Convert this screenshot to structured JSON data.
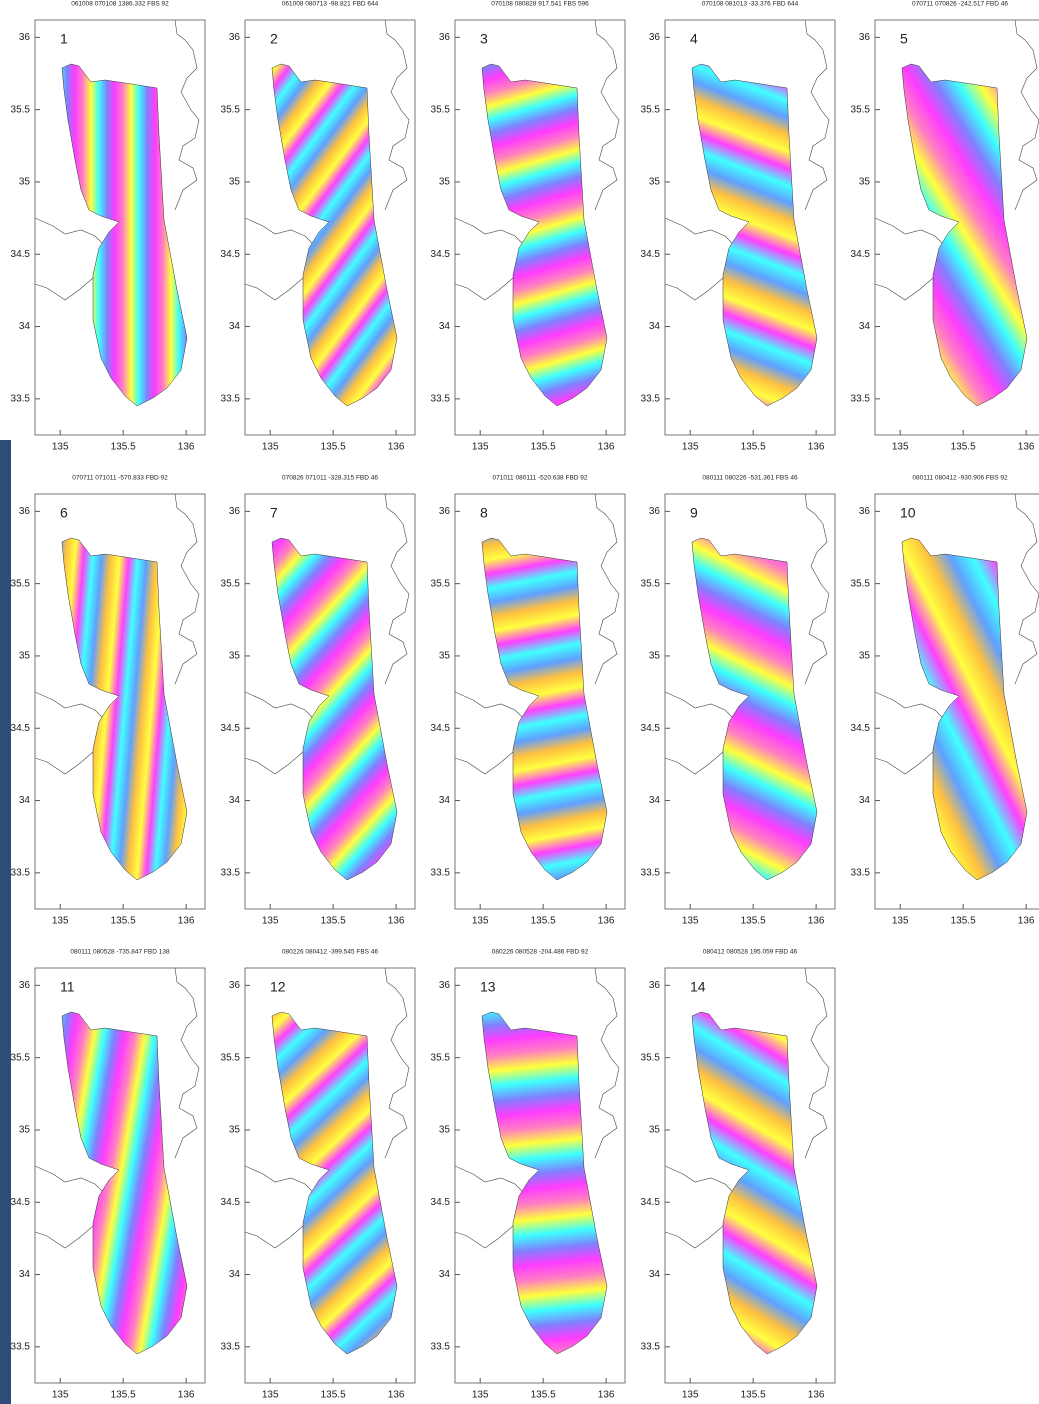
{
  "chart_data": [
    {
      "type": "map",
      "title": "061008 070108 1386.332 FBS 92",
      "annotation": "1",
      "xlim": [
        134.8,
        136.15
      ],
      "ylim": [
        33.25,
        36.12
      ],
      "xticks": [
        135,
        135.5,
        136
      ],
      "yticks": [
        33.5,
        34,
        34.5,
        35,
        35.5,
        36
      ]
    },
    {
      "type": "map",
      "title": "061008 080713 -98.821 FBD 644",
      "annotation": "2",
      "xlim": [
        134.8,
        136.15
      ],
      "ylim": [
        33.25,
        36.12
      ],
      "xticks": [
        135,
        135.5,
        136
      ],
      "yticks": [
        33.5,
        34,
        34.5,
        35,
        35.5,
        36
      ]
    },
    {
      "type": "map",
      "title": "070108 080828 917.541 FBS 596",
      "annotation": "3",
      "xlim": [
        134.8,
        136.15
      ],
      "ylim": [
        33.25,
        36.12
      ],
      "xticks": [
        135,
        135.5,
        136
      ],
      "yticks": [
        33.5,
        34,
        34.5,
        35,
        35.5,
        36
      ]
    },
    {
      "type": "map",
      "title": "070108 081013 -33.376 FBD 644",
      "annotation": "4",
      "xlim": [
        134.8,
        136.15
      ],
      "ylim": [
        33.25,
        36.12
      ],
      "xticks": [
        135,
        135.5,
        136
      ],
      "yticks": [
        33.5,
        34,
        34.5,
        35,
        35.5,
        36
      ]
    },
    {
      "type": "map",
      "title": "070711 070826 -242.517 FBD 46",
      "annotation": "5",
      "xlim": [
        134.8,
        136.15
      ],
      "ylim": [
        33.25,
        36.12
      ],
      "xticks": [
        135,
        135.5,
        136
      ],
      "yticks": [
        33.5,
        34,
        34.5,
        35,
        35.5,
        36
      ]
    },
    {
      "type": "map",
      "title": "070711 071011 -570.833 FBD 92",
      "annotation": "6",
      "xlim": [
        134.8,
        136.15
      ],
      "ylim": [
        33.25,
        36.12
      ],
      "xticks": [
        135,
        135.5,
        136
      ],
      "yticks": [
        33.5,
        34,
        34.5,
        35,
        35.5,
        36
      ]
    },
    {
      "type": "map",
      "title": "070826 071011 -328.315 FBD 46",
      "annotation": "7",
      "xlim": [
        134.8,
        136.15
      ],
      "ylim": [
        33.25,
        36.12
      ],
      "xticks": [
        135,
        135.5,
        136
      ],
      "yticks": [
        33.5,
        34,
        34.5,
        35,
        35.5,
        36
      ]
    },
    {
      "type": "map",
      "title": "071011 080111 -520.638 FBD 92",
      "annotation": "8",
      "xlim": [
        134.8,
        136.15
      ],
      "ylim": [
        33.25,
        36.12
      ],
      "xticks": [
        135,
        135.5,
        136
      ],
      "yticks": [
        33.5,
        34,
        34.5,
        35,
        35.5,
        36
      ]
    },
    {
      "type": "map",
      "title": "080111 080226 -531.361 FBS 46",
      "annotation": "9",
      "xlim": [
        134.8,
        136.15
      ],
      "ylim": [
        33.25,
        36.12
      ],
      "xticks": [
        135,
        135.5,
        136
      ],
      "yticks": [
        33.5,
        34,
        34.5,
        35,
        35.5,
        36
      ]
    },
    {
      "type": "map",
      "title": "080111 080412 -930.906 FBS 92",
      "annotation": "10",
      "xlim": [
        134.8,
        136.15
      ],
      "ylim": [
        33.25,
        36.12
      ],
      "xticks": [
        135,
        135.5,
        136
      ],
      "yticks": [
        33.5,
        34,
        34.5,
        35,
        35.5,
        36
      ]
    },
    {
      "type": "map",
      "title": "080111 080528 -735.847 FBD 138",
      "annotation": "11",
      "xlim": [
        134.8,
        136.15
      ],
      "ylim": [
        33.25,
        36.12
      ],
      "xticks": [
        135,
        135.5,
        136
      ],
      "yticks": [
        33.5,
        34,
        34.5,
        35,
        35.5,
        36
      ]
    },
    {
      "type": "map",
      "title": "080226 080412 -399.545 FBS 46",
      "annotation": "12",
      "xlim": [
        134.8,
        136.15
      ],
      "ylim": [
        33.25,
        36.12
      ],
      "xticks": [
        135,
        135.5,
        136
      ],
      "yticks": [
        33.5,
        34,
        34.5,
        35,
        35.5,
        36
      ]
    },
    {
      "type": "map",
      "title": "080226 080528 -204.486 FBD 92",
      "annotation": "13",
      "xlim": [
        134.8,
        136.15
      ],
      "ylim": [
        33.25,
        36.12
      ],
      "xticks": [
        135,
        135.5,
        136
      ],
      "yticks": [
        33.5,
        34,
        34.5,
        35,
        35.5,
        36
      ]
    },
    {
      "type": "map",
      "title": "080412 080528 195.059 FBD 46",
      "annotation": "14",
      "xlim": [
        134.8,
        136.15
      ],
      "ylim": [
        33.25,
        36.12
      ],
      "xticks": [
        135,
        135.5,
        136
      ],
      "yticks": [
        33.5,
        34,
        34.5,
        35,
        35.5,
        36
      ]
    }
  ]
}
